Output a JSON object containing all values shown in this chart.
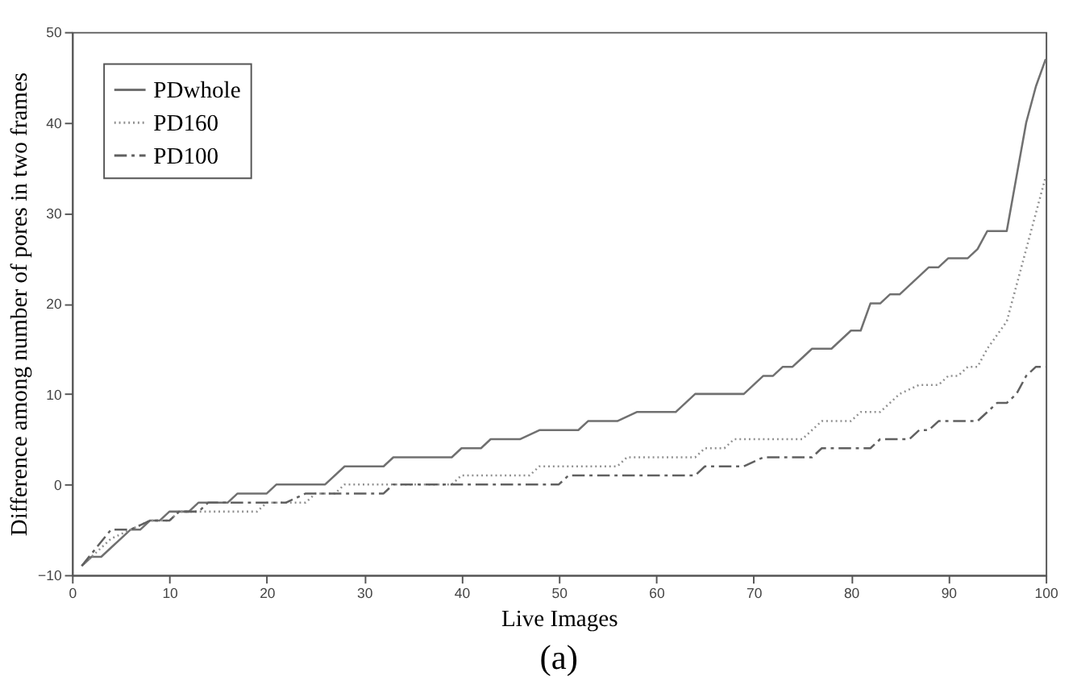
{
  "chart_data": {
    "type": "line",
    "xlabel": "Live Images",
    "ylabel": "Difference among number of pores in two frames",
    "annotations": [
      "(a)"
    ],
    "xlim": [
      0,
      100
    ],
    "xticks": [
      0,
      10,
      20,
      30,
      40,
      50,
      60,
      70,
      80,
      90,
      100
    ],
    "ylim": [
      -10,
      50
    ],
    "yticks": [
      -10,
      0,
      10,
      20,
      30,
      40,
      50
    ],
    "legend": "top left",
    "grid": false,
    "marker": "none",
    "series": [
      {
        "name": "PDwhole",
        "color": "#707070",
        "line_style": "solid",
        "x": [
          1,
          2,
          3,
          4,
          5,
          6,
          7,
          8,
          9,
          10,
          12,
          13,
          16,
          17,
          20,
          21,
          26,
          28,
          32,
          33,
          39,
          40,
          42,
          43,
          46,
          48,
          52,
          53,
          56,
          58,
          62,
          63,
          64,
          69,
          71,
          72,
          73,
          74,
          75,
          76,
          78,
          80,
          81,
          82,
          83,
          84,
          85,
          87,
          88,
          89,
          90,
          92,
          93,
          94,
          96,
          97,
          98,
          99,
          100
        ],
        "values": [
          -9,
          -8,
          -8,
          -7,
          -6,
          -5,
          -5,
          -4,
          -4,
          -3,
          -3,
          -2,
          -2,
          -1,
          -1,
          0,
          0,
          2,
          2,
          3,
          3,
          4,
          4,
          5,
          5,
          6,
          6,
          7,
          7,
          8,
          8,
          9,
          10,
          10,
          12,
          12,
          13,
          13,
          14,
          15,
          15,
          17,
          17,
          20,
          20,
          21,
          21,
          23,
          24,
          24,
          25,
          25,
          26,
          28,
          28,
          34,
          40,
          44,
          47
        ]
      },
      {
        "name": "PD160",
        "color": "#909090",
        "line_style": "dotted",
        "x": [
          1,
          4,
          8,
          10,
          11,
          19,
          20,
          24,
          25,
          27,
          28,
          39,
          40,
          47,
          48,
          56,
          57,
          64,
          65,
          67,
          68,
          75,
          76,
          77,
          80,
          81,
          83,
          84,
          85,
          87,
          89,
          90,
          91,
          92,
          93,
          94,
          96,
          98,
          100
        ],
        "values": [
          -9,
          -6,
          -4,
          -4,
          -3,
          -3,
          -2,
          -2,
          -1,
          -1,
          0,
          0,
          1,
          1,
          2,
          2,
          3,
          3,
          4,
          4,
          5,
          5,
          6,
          7,
          7,
          8,
          8,
          9,
          10,
          11,
          11,
          12,
          12,
          13,
          13,
          15,
          18,
          26,
          34
        ]
      },
      {
        "name": "PD100",
        "color": "#606060",
        "line_style": "dashed",
        "x": [
          1,
          4,
          6,
          8,
          10,
          11,
          13,
          14,
          22,
          24,
          32,
          33,
          50,
          51,
          64,
          65,
          69,
          71,
          76,
          77,
          82,
          83,
          86,
          87,
          88,
          89,
          93,
          95,
          96,
          97,
          98,
          99,
          100
        ],
        "values": [
          -9,
          -5,
          -5,
          -4,
          -4,
          -3,
          -3,
          -2,
          -2,
          -1,
          -1,
          0,
          0,
          1,
          1,
          2,
          2,
          3,
          3,
          4,
          4,
          5,
          5,
          6,
          6,
          7,
          7,
          9,
          9,
          10,
          12,
          13,
          13
        ]
      }
    ]
  }
}
